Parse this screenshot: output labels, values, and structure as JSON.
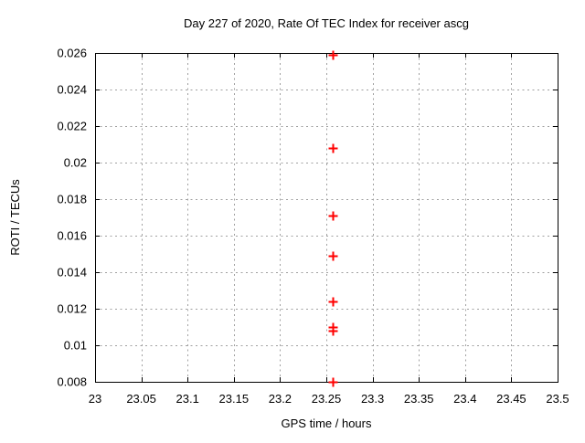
{
  "chart_data": {
    "type": "scatter",
    "title": "Day 227 of 2020, Rate Of TEC Index for receiver ascg",
    "xlabel": "GPS time / hours",
    "ylabel": "ROTI / TECUs",
    "xlim": [
      23,
      23.5
    ],
    "ylim": [
      0.008,
      0.026
    ],
    "grid": true,
    "legend_position": "none",
    "xticks": [
      {
        "v": 23.0,
        "label": "23"
      },
      {
        "v": 23.05,
        "label": "23.05"
      },
      {
        "v": 23.1,
        "label": "23.1"
      },
      {
        "v": 23.15,
        "label": "23.15"
      },
      {
        "v": 23.2,
        "label": "23.2"
      },
      {
        "v": 23.25,
        "label": "23.25"
      },
      {
        "v": 23.3,
        "label": "23.3"
      },
      {
        "v": 23.35,
        "label": "23.35"
      },
      {
        "v": 23.4,
        "label": "23.4"
      },
      {
        "v": 23.45,
        "label": "23.45"
      },
      {
        "v": 23.5,
        "label": "23.5"
      }
    ],
    "yticks": [
      {
        "v": 0.008,
        "label": "0.008"
      },
      {
        "v": 0.01,
        "label": "0.01"
      },
      {
        "v": 0.012,
        "label": "0.012"
      },
      {
        "v": 0.014,
        "label": "0.014"
      },
      {
        "v": 0.016,
        "label": "0.016"
      },
      {
        "v": 0.018,
        "label": "0.018"
      },
      {
        "v": 0.02,
        "label": "0.02"
      },
      {
        "v": 0.022,
        "label": "0.022"
      },
      {
        "v": 0.024,
        "label": "0.024"
      },
      {
        "v": 0.026,
        "label": "0.026"
      }
    ],
    "marker": {
      "shape": "plus",
      "size": 5
    },
    "points": [
      {
        "x": 23.257,
        "y": 0.0259
      },
      {
        "x": 23.257,
        "y": 0.0208
      },
      {
        "x": 23.257,
        "y": 0.0171
      },
      {
        "x": 23.257,
        "y": 0.0149
      },
      {
        "x": 23.257,
        "y": 0.0124
      },
      {
        "x": 23.257,
        "y": 0.011
      },
      {
        "x": 23.257,
        "y": 0.0108
      },
      {
        "x": 23.257,
        "y": 0.008
      }
    ]
  },
  "colors": {
    "background": "#ffffff",
    "axis": "#000000",
    "grid": "#a0a0a0",
    "text": "#000000",
    "marker": "#ff0000"
  }
}
